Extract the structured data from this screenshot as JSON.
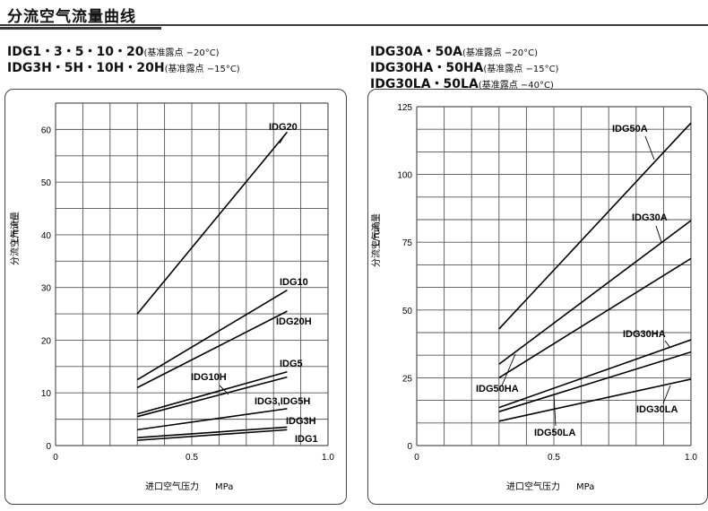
{
  "title": "分流空气流量曲线",
  "left_header": [
    {
      "models": "IDG1・3・5・10・20",
      "note": "(基准露点 −20°C)"
    },
    {
      "models": "IDG3H・5H・10H・20H",
      "note": "(基准露点 −15°C)"
    }
  ],
  "right_header": [
    {
      "models": "IDG30A・50A",
      "note": "(基准露点 −20°C)"
    },
    {
      "models": "IDG30HA・50HA",
      "note": "(基准露点 −15°C)"
    },
    {
      "models": "IDG30LA・50LA",
      "note": "(基准露点 −40°C)"
    }
  ],
  "colors": {
    "grid": "#555555",
    "line": "#000000",
    "plot_bg": "#ffffff"
  },
  "chart_data": [
    {
      "type": "line",
      "ylabel": "分流空气流量",
      "yunit": "L/min",
      "xlabel": "进口空气压力",
      "xunit": "MPa",
      "xlim": [
        0,
        1.0
      ],
      "ylim": [
        0,
        65
      ],
      "xticks": [
        "0",
        "0.5",
        "1.0"
      ],
      "yticks": [
        "0",
        "10",
        "20",
        "30",
        "40",
        "50",
        "60"
      ],
      "grid": true,
      "series": [
        {
          "name": "IDG20",
          "x": [
            0.3,
            0.85
          ],
          "y": [
            25,
            59.5
          ]
        },
        {
          "name": "IDG10",
          "x": [
            0.3,
            0.85
          ],
          "y": [
            12.5,
            29.5
          ]
        },
        {
          "name": "IDG20H",
          "x": [
            0.3,
            0.85
          ],
          "y": [
            11,
            25.5
          ]
        },
        {
          "name": "IDG5",
          "x": [
            0.3,
            0.85
          ],
          "y": [
            6,
            14
          ]
        },
        {
          "name": "IDG10H",
          "x": [
            0.3,
            0.85
          ],
          "y": [
            5.5,
            13
          ]
        },
        {
          "name": "IDG3,IDG5H",
          "x": [
            0.3,
            0.85
          ],
          "y": [
            3,
            7
          ]
        },
        {
          "name": "IDG3H",
          "x": [
            0.3,
            0.85
          ],
          "y": [
            1.5,
            3.5
          ]
        },
        {
          "name": "IDG1",
          "x": [
            0.3,
            0.85
          ],
          "y": [
            1,
            3
          ]
        }
      ]
    },
    {
      "type": "line",
      "ylabel": "分流空气流量",
      "yunit": "L/min",
      "xlabel": "进口空气压力",
      "xunit": "MPa",
      "xlim": [
        0,
        1.0
      ],
      "ylim": [
        0,
        125
      ],
      "xticks": [
        "0",
        "0.5",
        "1.0"
      ],
      "yticks": [
        "0",
        "25",
        "50",
        "75",
        "100",
        "125"
      ],
      "grid": true,
      "series": [
        {
          "name": "IDG50A",
          "x": [
            0.3,
            1.0
          ],
          "y": [
            43,
            119
          ]
        },
        {
          "name": "IDG30A",
          "x": [
            0.3,
            1.0
          ],
          "y": [
            30,
            83
          ]
        },
        {
          "name": "IDG50HA",
          "x": [
            0.3,
            1.0
          ],
          "y": [
            25,
            69
          ]
        },
        {
          "name": "IDG30HA",
          "x": [
            0.3,
            1.0
          ],
          "y": [
            14,
            39
          ]
        },
        {
          "name": "IDG50LA",
          "x": [
            0.3,
            1.0
          ],
          "y": [
            12.5,
            34.5
          ]
        },
        {
          "name": "IDG30LA",
          "x": [
            0.3,
            1.0
          ],
          "y": [
            9,
            24.5
          ]
        }
      ]
    }
  ]
}
